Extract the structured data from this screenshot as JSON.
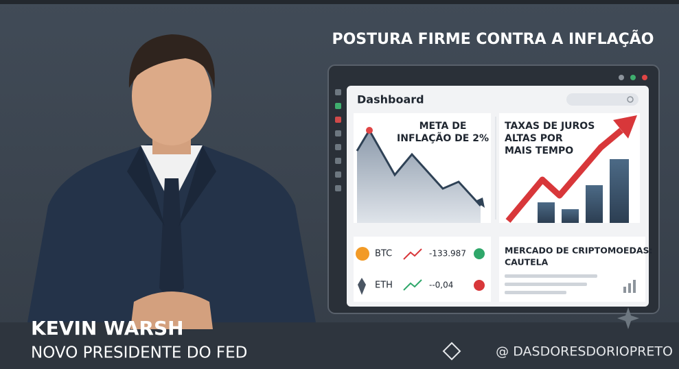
{
  "headline": "POSTURA FIRME CONTRA A INFLAÇÃO",
  "dashboard": {
    "title": "Dashboard",
    "inflation_card": {
      "lines": [
        "META DE",
        "INFLAÇÃO DE 2%"
      ]
    },
    "rates_card": {
      "lines": [
        "TAXAS DE JUROS",
        "ALTAS POR",
        "MAIS TEMPO"
      ]
    },
    "crypto_rows": [
      {
        "symbol": "BTC",
        "value": "-133.987"
      },
      {
        "symbol": "ETH",
        "value": "--0,04"
      }
    ],
    "market_card": {
      "lines": [
        "MERCADO DE CRIPTOMOEDAS:",
        "CAUTELA"
      ]
    }
  },
  "caption": {
    "name": "KEVIN WARSH",
    "role": "NOVO PRESIDENTE DO FED"
  },
  "watermark": "@ DASDORESDORIOPRETO"
}
